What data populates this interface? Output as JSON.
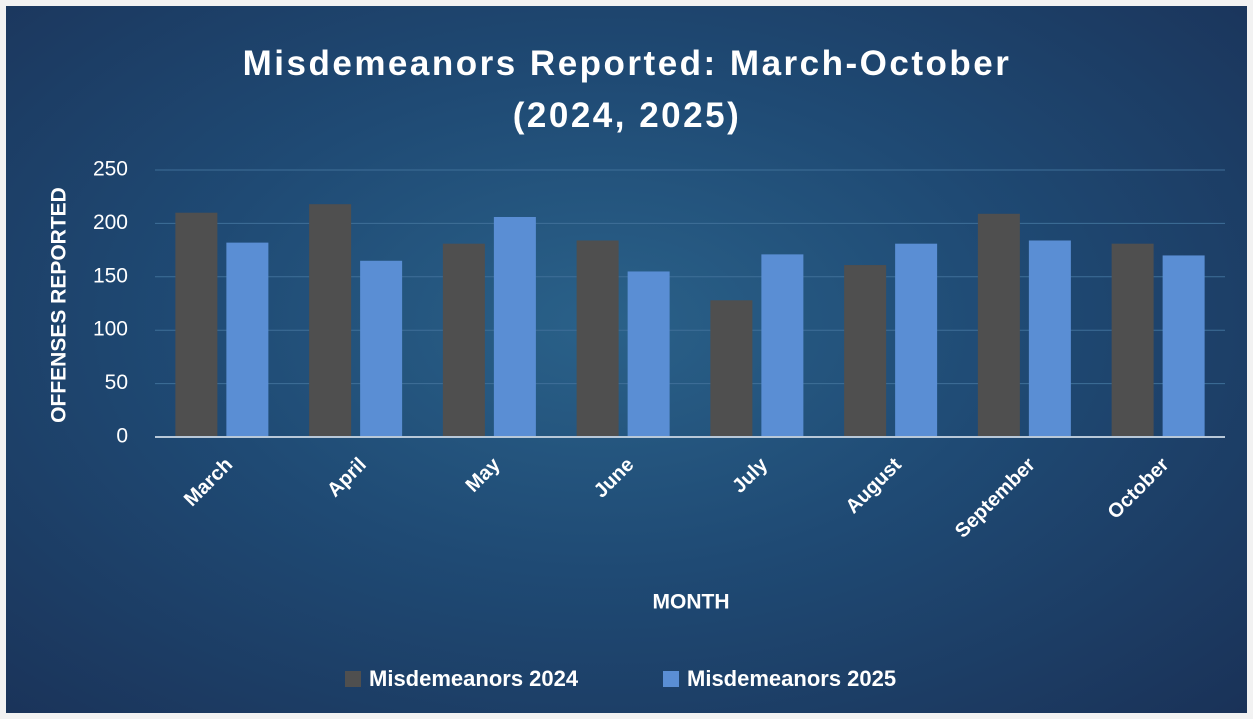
{
  "chart_data": {
    "type": "bar",
    "title": "Misdemeanors Reported: March-October (2024, 2025)",
    "x_label": "MONTH",
    "y_label": "OFFENSES REPORTED",
    "categories": [
      "March",
      "April",
      "May",
      "June",
      "July",
      "August",
      "September",
      "October"
    ],
    "series": [
      {
        "name": "Misdemeanors 2024",
        "color": "#4f4f4f",
        "values": [
          210,
          218,
          181,
          184,
          128,
          161,
          209,
          181
        ]
      },
      {
        "name": "Misdemeanors 2025",
        "color": "#5a8ed4",
        "values": [
          182,
          165,
          206,
          155,
          171,
          181,
          184,
          170
        ]
      }
    ],
    "ylim": [
      0,
      250
    ],
    "yticks": [
      0,
      50,
      100,
      150,
      200,
      250
    ],
    "grid": true,
    "legend": "bottom"
  }
}
